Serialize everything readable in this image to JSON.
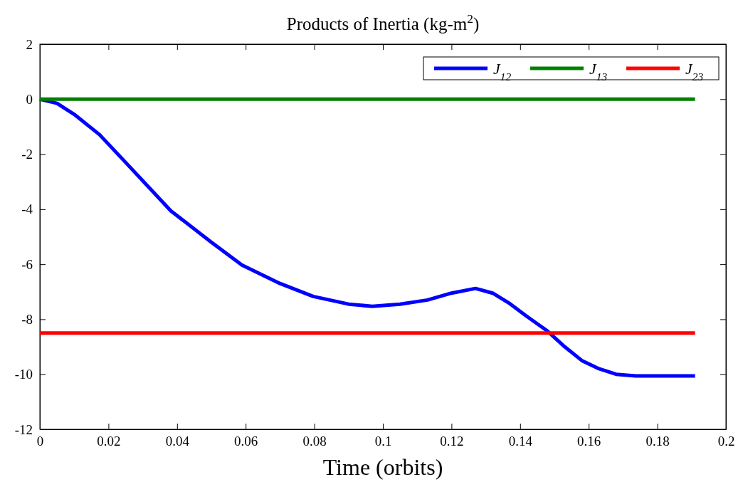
{
  "chart_data": {
    "type": "line",
    "title": "Products of Inertia (kg-m$^{2}$)",
    "xlabel": "Time (orbits)",
    "xlim": [
      0,
      0.2
    ],
    "xticks": [
      0,
      0.02,
      0.04,
      0.06,
      0.08,
      0.1,
      0.12,
      0.14,
      0.16,
      0.18,
      0.2
    ],
    "ylim": [
      -12,
      2
    ],
    "yticks": [
      -12,
      -10,
      -8,
      -6,
      -4,
      -2,
      0,
      2
    ],
    "legend": "top right",
    "grid": false,
    "line_style": "solid",
    "marker": "none",
    "series": [
      {
        "name": "J$_{12}$",
        "color": "#0000ff",
        "x": [
          0,
          0.005,
          0.01,
          0.0174,
          0.025,
          0.0382,
          0.05,
          0.0589,
          0.07,
          0.0797,
          0.09,
          0.0969,
          0.105,
          0.113,
          0.12,
          0.127,
          0.132,
          0.137,
          0.142,
          0.148,
          0.153,
          0.158,
          0.163,
          0.168,
          0.1737,
          0.18,
          0.191
        ],
        "values": [
          0,
          -0.15,
          -0.55,
          -1.29,
          -2.3,
          -4.06,
          -5.2,
          -6.03,
          -6.7,
          -7.17,
          -7.45,
          -7.53,
          -7.45,
          -7.3,
          -7.05,
          -6.88,
          -7.05,
          -7.43,
          -7.9,
          -8.43,
          -9.0,
          -9.5,
          -9.8,
          -10.0,
          -10.06,
          -10.06,
          -10.06
        ]
      },
      {
        "name": "J$_{13}$",
        "color": "#008000",
        "x": [
          0,
          0.191
        ],
        "values": [
          0,
          0
        ]
      },
      {
        "name": "J$_{23}$",
        "color": "#ff0000",
        "x": [
          0,
          0.191
        ],
        "values": [
          -8.5,
          -8.5
        ]
      }
    ]
  }
}
